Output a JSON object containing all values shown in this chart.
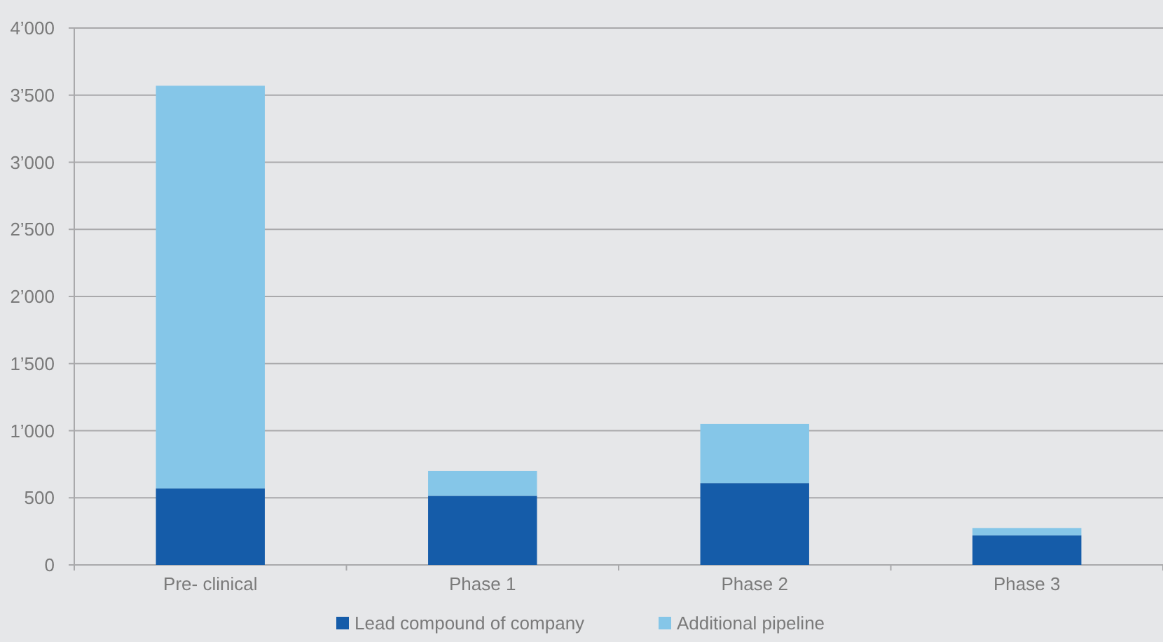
{
  "chart_data": {
    "type": "bar",
    "stacked": true,
    "categories": [
      "Pre- clinical",
      "Phase 1",
      "Phase 2",
      "Phase 3"
    ],
    "series": [
      {
        "name": "Lead compound of company",
        "color": "#155ca9",
        "values": [
          570,
          515,
          610,
          220
        ]
      },
      {
        "name": "Additional pipeline",
        "color": "#85c6e8",
        "values": [
          3000,
          185,
          440,
          55
        ]
      }
    ],
    "ylim": [
      0,
      4000
    ],
    "yticks": [
      0,
      500,
      {
        "value": 1000,
        "label": "1’000"
      },
      {
        "value": 1500,
        "label": "1’500"
      },
      {
        "value": 2000,
        "label": "2’000"
      },
      {
        "value": 2500,
        "label": "2’500"
      },
      {
        "value": 3000,
        "label": "3’000"
      },
      {
        "value": 3500,
        "label": "3’500"
      },
      {
        "value": 4000,
        "label": "4’000"
      }
    ],
    "grid": "y",
    "legend": "bottom"
  }
}
